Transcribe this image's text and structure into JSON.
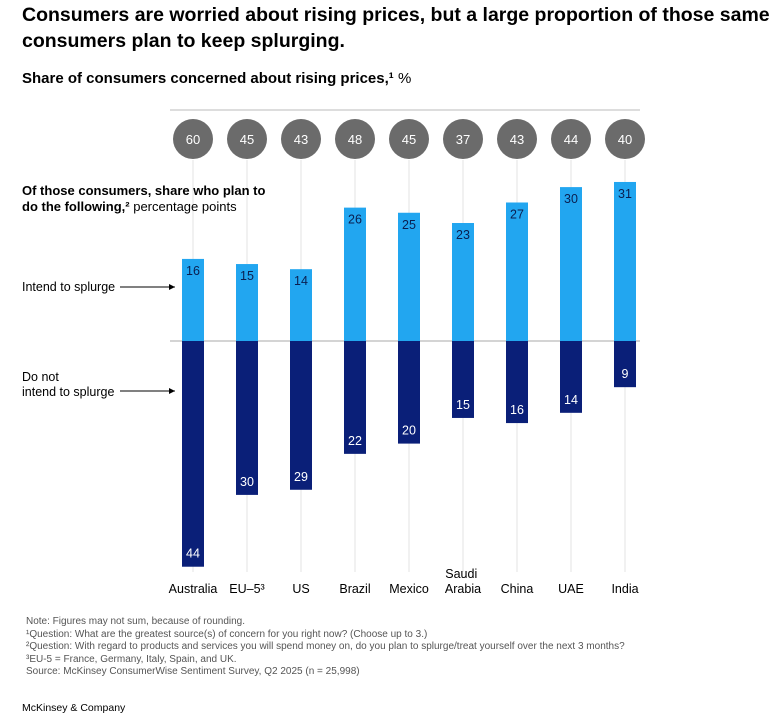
{
  "chart_data": {
    "type": "diverging_bar",
    "title": "Consumers are worried about rising prices, but a large proportion of those same consumers plan to keep splurging.",
    "subtitle": "Share of consumers concerned about rising prices,¹",
    "subtitle_unit": "%",
    "panel_label_bold": "Of those consumers, share who plan to do the following,²",
    "panel_label_rest": "percentage points",
    "categories": [
      "Australia",
      "EU–5³",
      "US",
      "Brazil",
      "Mexico",
      "Saudi Arabia",
      "China",
      "UAE",
      "India"
    ],
    "concerned": {
      "values": [
        60,
        45,
        43,
        48,
        45,
        37,
        43,
        44,
        40
      ],
      "color": "#6b6b6b"
    },
    "series": [
      {
        "name": "Intend to splurge",
        "color": "#22a6f0",
        "values": [
          16,
          15,
          14,
          26,
          25,
          23,
          27,
          30,
          31
        ]
      },
      {
        "name": "Do not intend to splurge",
        "color": "#0a1f78",
        "values": [
          44,
          30,
          29,
          22,
          20,
          15,
          16,
          14,
          9
        ]
      }
    ],
    "notes": [
      "Note: Figures may not sum, because of rounding.",
      "¹Question: What are the greatest source(s) of concern for you right now? (Choose up to 3.)",
      "²Question: With regard to products and services you will spend money on, do you plan to splurge/treat yourself over the next 3 months?",
      "³EU-5 = France, Germany, Italy, Spain, and UK.",
      "Source: McKinsey ConsumerWise Sentiment Survey, Q2 2025 (n = 25,998)"
    ],
    "footer": "McKinsey & Company"
  }
}
